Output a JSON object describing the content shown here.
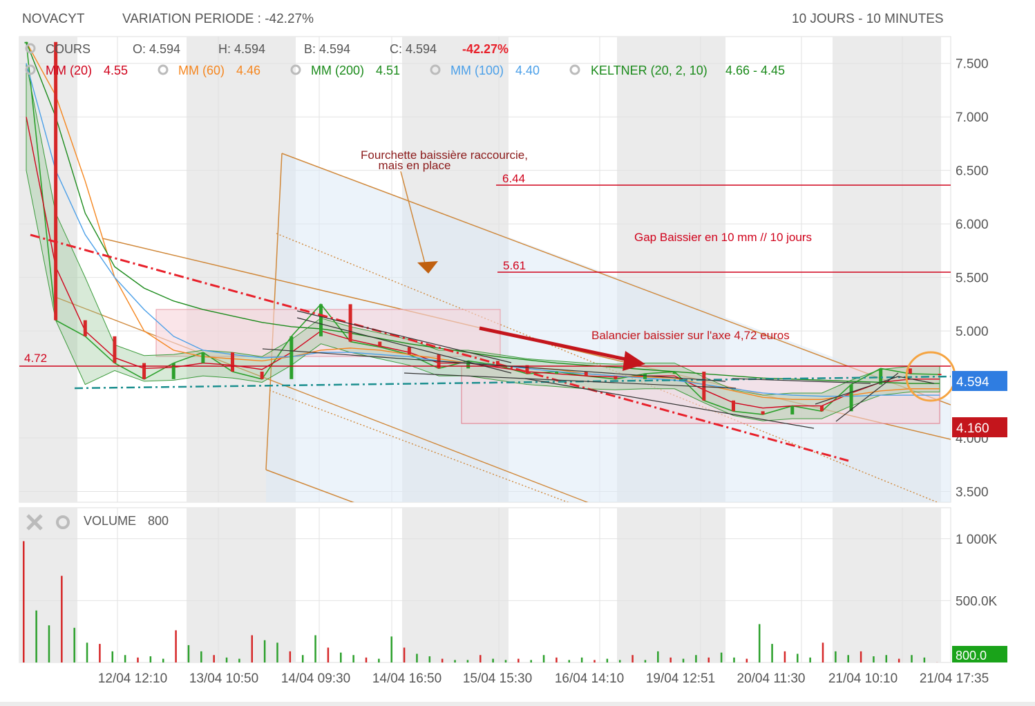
{
  "header": {
    "instrument": "NOVACYT",
    "variation": "VARIATION PERIODE : -42.27%",
    "period": "10 JOURS - 10 MINUTES"
  },
  "price_legend": {
    "cours_label": "COURS",
    "open": "O: 4.594",
    "high": "H: 4.594",
    "low": "B: 4.594",
    "close": "C: 4.594",
    "change": "-42.27%",
    "indicators": [
      {
        "label": "MM (20)",
        "value": "4.55",
        "color": "#d0021b"
      },
      {
        "label": "MM (60)",
        "value": "4.46",
        "color": "#f5861f"
      },
      {
        "label": "MM (200)",
        "value": "4.51",
        "color": "#1a8a1a"
      },
      {
        "label": "MM (100)",
        "value": "4.40",
        "color": "#4a9fe8"
      },
      {
        "label": "KELTNER (20, 2, 10)",
        "value": "4.66 - 4.45",
        "color": "#1a8a1a"
      }
    ]
  },
  "volume_legend": {
    "label": "VOLUME",
    "value": "800"
  },
  "annotations": {
    "fork_title_1": "Fourchette baissière raccourcie,",
    "fork_title_2": "mais en place",
    "level_high": "6.44",
    "level_mid": "5.61",
    "gap_text": "Gap Baissier en 10 mm // 10 jours",
    "balancier_text": "Balancier baissier sur l'axe 4,72 euros",
    "level_axis": "4.72"
  },
  "badges": {
    "last_price": "4.594",
    "low_price": "4.160",
    "last_volume": "800.0"
  },
  "colors": {
    "up": "#2ca02c",
    "down": "#d62728",
    "accent_blue": "#2f7de1",
    "accent_red": "#c4151c",
    "accent_green": "#1aa31a",
    "fork": "#d0883a"
  },
  "chart_data": [
    {
      "type": "line",
      "ylim": [
        3.4,
        7.75
      ],
      "y_ticks": [
        "7.500",
        "7.000",
        "6.500",
        "6.000",
        "5.500",
        "5.000",
        "4.000",
        "3.500"
      ],
      "y_tick_values": [
        7.5,
        7.0,
        6.5,
        6.0,
        5.5,
        5.0,
        4.0,
        3.5
      ],
      "x_ticks": [
        "12/04 12:10",
        "13/04 10:50",
        "14/04 09:30",
        "14/04 16:50",
        "15/04 15:30",
        "16/04 14:10",
        "19/04 12:51",
        "20/04 11:30",
        "21/04 10:10",
        "21/04 17:35"
      ],
      "series": [
        {
          "name": "COURS",
          "values": [
            7.7,
            5.1,
            4.95,
            4.7,
            4.55,
            4.7,
            4.8,
            4.62,
            4.55,
            4.95,
            5.25,
            4.9,
            4.85,
            4.78,
            4.65,
            4.72,
            4.68,
            4.6,
            4.62,
            4.58,
            4.55,
            4.6,
            4.62,
            4.35,
            4.25,
            4.22,
            4.3,
            4.25,
            4.5,
            4.65,
            4.6,
            4.594
          ]
        },
        {
          "name": "MM (20)",
          "values": [
            7.0,
            5.6,
            5.0,
            4.75,
            4.65,
            4.66,
            4.7,
            4.68,
            4.64,
            4.8,
            5.0,
            4.92,
            4.86,
            4.8,
            4.7,
            4.7,
            4.66,
            4.62,
            4.6,
            4.58,
            4.57,
            4.58,
            4.58,
            4.45,
            4.33,
            4.28,
            4.3,
            4.3,
            4.42,
            4.52,
            4.55,
            4.55
          ]
        },
        {
          "name": "MM (60)",
          "values": [
            7.7,
            7.2,
            6.4,
            5.5,
            5.0,
            4.82,
            4.76,
            4.74,
            4.72,
            4.76,
            4.82,
            4.84,
            4.82,
            4.78,
            4.74,
            4.7,
            4.68,
            4.66,
            4.64,
            4.6,
            4.58,
            4.57,
            4.56,
            4.5,
            4.44,
            4.38,
            4.36,
            4.36,
            4.4,
            4.44,
            4.46,
            4.46
          ]
        },
        {
          "name": "MM (200)",
          "values": [
            7.7,
            7.0,
            6.1,
            5.6,
            5.4,
            5.28,
            5.2,
            5.14,
            5.08,
            5.04,
            5.02,
            4.98,
            4.93,
            4.88,
            4.84,
            4.8,
            4.76,
            4.73,
            4.7,
            4.68,
            4.66,
            4.64,
            4.62,
            4.6,
            4.58,
            4.56,
            4.55,
            4.54,
            4.53,
            4.52,
            4.51,
            4.51
          ]
        },
        {
          "name": "MM (100)",
          "values": [
            7.5,
            6.5,
            5.9,
            5.5,
            5.2,
            4.95,
            4.82,
            4.78,
            4.75,
            4.76,
            4.8,
            4.8,
            4.78,
            4.76,
            4.72,
            4.7,
            4.68,
            4.65,
            4.62,
            4.6,
            4.58,
            4.56,
            4.54,
            4.5,
            4.46,
            4.42,
            4.4,
            4.39,
            4.39,
            4.4,
            4.4,
            4.4
          ]
        }
      ],
      "hlines": [
        6.44,
        5.61,
        4.72
      ]
    },
    {
      "type": "bar",
      "ylim": [
        0,
        1250
      ],
      "y_ticks": [
        "1 000K",
        "500.0K"
      ],
      "y_tick_values": [
        1000,
        500
      ],
      "x_ticks": [
        "12/04 12:10",
        "13/04 10:50",
        "14/04 09:30",
        "14/04 16:50",
        "15/04 15:30",
        "16/04 14:10",
        "19/04 12:51",
        "20/04 11:30",
        "21/04 10:10",
        "21/04 17:35"
      ],
      "series": [
        {
          "name": "VOLUME",
          "values": [
            980,
            420,
            300,
            700,
            280,
            160,
            150,
            90,
            60,
            40,
            50,
            30,
            260,
            140,
            90,
            60,
            40,
            30,
            220,
            180,
            160,
            90,
            60,
            220,
            120,
            80,
            60,
            40,
            30,
            210,
            120,
            70,
            50,
            30,
            20,
            20,
            60,
            30,
            20,
            30,
            20,
            60,
            40,
            20,
            40,
            20,
            30,
            20,
            60,
            20,
            90,
            40,
            30,
            60,
            40,
            80,
            40,
            30,
            310,
            150,
            90,
            70,
            40,
            160,
            90,
            60,
            90,
            50,
            60,
            30,
            60,
            40,
            0.8
          ]
        }
      ]
    }
  ]
}
